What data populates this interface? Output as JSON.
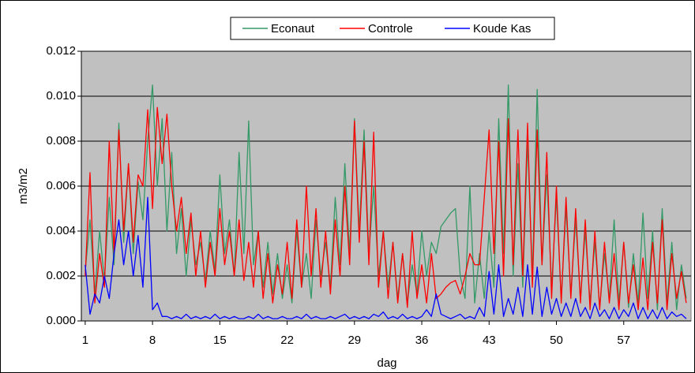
{
  "chart_data": {
    "type": "line",
    "xlabel": "dag",
    "ylabel": "m3/m2",
    "legend": "top",
    "grid": true,
    "xlim": [
      0.6,
      64
    ],
    "xticks": [
      1,
      8,
      15,
      22,
      29,
      36,
      43,
      50,
      57
    ],
    "ylim": [
      0,
      0.012
    ],
    "yticks": [
      {
        "value": 0,
        "label": "0.000"
      },
      {
        "value": 0.002,
        "label": "0.002"
      },
      {
        "value": 0.004,
        "label": "0.004"
      },
      {
        "value": 0.006,
        "label": "0.006"
      },
      {
        "value": 0.008,
        "label": "0.008"
      },
      {
        "value": 0.01,
        "label": "0.010"
      },
      {
        "value": 0.012,
        "label": "0.012"
      }
    ],
    "x": [
      1,
      1.5,
      2,
      2.5,
      3,
      3.5,
      4,
      4.5,
      5,
      5.5,
      6,
      6.5,
      7,
      7.5,
      8,
      8.5,
      9,
      9.5,
      10,
      10.5,
      11,
      11.5,
      12,
      12.5,
      13,
      13.5,
      14,
      14.5,
      15,
      15.5,
      16,
      16.5,
      17,
      17.5,
      18,
      18.5,
      19,
      19.5,
      20,
      20.5,
      21,
      21.5,
      22,
      22.5,
      23,
      23.5,
      24,
      24.5,
      25,
      25.5,
      26,
      26.5,
      27,
      27.5,
      28,
      28.5,
      29,
      29.5,
      30,
      30.5,
      31,
      31.5,
      32,
      32.5,
      33,
      33.5,
      34,
      34.5,
      35,
      35.5,
      36,
      36.5,
      37,
      37.5,
      38,
      38.5,
      39,
      39.5,
      40,
      40.5,
      41,
      41.5,
      42,
      42.5,
      43,
      43.5,
      44,
      44.5,
      45,
      45.5,
      46,
      46.5,
      47,
      47.5,
      48,
      48.5,
      49,
      49.5,
      50,
      50.5,
      51,
      51.5,
      52,
      52.5,
      53,
      53.5,
      54,
      54.5,
      55,
      55.5,
      56,
      56.5,
      57,
      57.5,
      58,
      58.5,
      59,
      59.5,
      60,
      60.5,
      61,
      61.5,
      62,
      62.5,
      63,
      63.5
    ],
    "series": [
      {
        "name": "Econaut",
        "color": "#339966",
        "values": [
          0.0022,
          0.0045,
          0.0012,
          0.004,
          0.0018,
          0.0055,
          0.0025,
          0.0088,
          0.0035,
          0.007,
          0.003,
          0.0062,
          0.0045,
          0.008,
          0.0105,
          0.006,
          0.009,
          0.004,
          0.0075,
          0.003,
          0.005,
          0.002,
          0.0045,
          0.0025,
          0.0035,
          0.0018,
          0.004,
          0.0022,
          0.0065,
          0.003,
          0.0045,
          0.002,
          0.0075,
          0.003,
          0.0089,
          0.0025,
          0.004,
          0.0015,
          0.0035,
          0.0012,
          0.003,
          0.001,
          0.0025,
          0.0008,
          0.004,
          0.0015,
          0.003,
          0.001,
          0.0045,
          0.002,
          0.0035,
          0.0015,
          0.0055,
          0.0025,
          0.007,
          0.003,
          0.009,
          0.004,
          0.0085,
          0.003,
          0.006,
          0.002,
          0.004,
          0.0015,
          0.0035,
          0.001,
          0.003,
          0.0008,
          0.0025,
          0.0012,
          0.004,
          0.002,
          0.0035,
          0.003,
          0.0042,
          0.0045,
          0.0048,
          0.005,
          0.002,
          0.001,
          0.006,
          0.0008,
          0.003,
          0.001,
          0.004,
          0.0015,
          0.009,
          0.003,
          0.0105,
          0.002,
          0.007,
          0.0015,
          0.008,
          0.002,
          0.0103,
          0.0025,
          0.0065,
          0.0015,
          0.0055,
          0.001,
          0.005,
          0.0012,
          0.0045,
          0.001,
          0.004,
          0.0008,
          0.0035,
          0.0006,
          0.003,
          0.001,
          0.0045,
          0.0008,
          0.0035,
          0.0006,
          0.003,
          0.0008,
          0.0048,
          0.001,
          0.004,
          0.0005,
          0.005,
          0.0008,
          0.0035,
          0.0005,
          0.0025,
          0.001
        ]
      },
      {
        "name": "Controle",
        "color": "#ff0000",
        "values": [
          0.002,
          0.0066,
          0.0008,
          0.003,
          0.0015,
          0.008,
          0.003,
          0.0085,
          0.004,
          0.007,
          0.0035,
          0.0065,
          0.006,
          0.0094,
          0.005,
          0.0095,
          0.007,
          0.0092,
          0.006,
          0.004,
          0.0055,
          0.003,
          0.0048,
          0.002,
          0.004,
          0.0015,
          0.0035,
          0.002,
          0.005,
          0.0025,
          0.004,
          0.002,
          0.0045,
          0.0018,
          0.0035,
          0.0015,
          0.004,
          0.001,
          0.003,
          0.0008,
          0.0025,
          0.0012,
          0.0035,
          0.001,
          0.0045,
          0.0015,
          0.006,
          0.002,
          0.005,
          0.0015,
          0.004,
          0.0012,
          0.0045,
          0.002,
          0.006,
          0.0025,
          0.0089,
          0.0035,
          0.008,
          0.0025,
          0.0084,
          0.0015,
          0.004,
          0.001,
          0.0035,
          0.0008,
          0.003,
          0.0006,
          0.004,
          0.001,
          0.0025,
          0.0008,
          0.003,
          0.001,
          0.0012,
          0.0015,
          0.0017,
          0.0018,
          0.0012,
          0.002,
          0.003,
          0.0025,
          0.0025,
          0.0055,
          0.0085,
          0.003,
          0.008,
          0.002,
          0.009,
          0.0025,
          0.0085,
          0.002,
          0.0088,
          0.0015,
          0.0085,
          0.0025,
          0.0075,
          0.001,
          0.006,
          0.0008,
          0.0055,
          0.001,
          0.005,
          0.0008,
          0.0045,
          0.0005,
          0.004,
          0.0005,
          0.0035,
          0.0008,
          0.003,
          0.0005,
          0.0035,
          0.0008,
          0.0025,
          0.0005,
          0.0028,
          0.0005,
          0.0035,
          0.0008,
          0.0045,
          0.0005,
          0.003,
          0.001,
          0.0022,
          0.0008
        ]
      },
      {
        "name": "Koude Kas",
        "color": "#0000ff",
        "values": [
          0.0025,
          0.0003,
          0.0012,
          0.0008,
          0.002,
          0.001,
          0.003,
          0.0045,
          0.0025,
          0.004,
          0.002,
          0.0038,
          0.0015,
          0.0055,
          0.0005,
          0.0008,
          0.0002,
          0.0002,
          0.0001,
          0.0002,
          0.0001,
          0.0003,
          0.0001,
          0.0002,
          0.0001,
          0.0002,
          0.0001,
          0.0003,
          0.0001,
          0.0002,
          0.0001,
          0.0002,
          0.0001,
          0.0001,
          0.0002,
          0.0001,
          0.0003,
          0.0001,
          0.0002,
          0.0001,
          0.0001,
          0.0002,
          0.0001,
          0.0001,
          0.0002,
          0.0001,
          0.0003,
          0.0001,
          0.0002,
          0.0001,
          0.0001,
          0.0002,
          0.0001,
          0.0002,
          0.0003,
          0.0001,
          0.0002,
          0.0001,
          0.0002,
          0.0001,
          0.0003,
          0.0002,
          0.0004,
          0.0001,
          0.0002,
          0.0001,
          0.0003,
          0.0001,
          0.0002,
          0.0001,
          0.0002,
          0.0005,
          0.0002,
          0.0012,
          0.0003,
          0.0002,
          0.0001,
          0.0002,
          0.0003,
          0.0001,
          0.0002,
          0.0001,
          0.0006,
          0.0002,
          0.0022,
          0.0003,
          0.0025,
          0.0002,
          0.001,
          0.0003,
          0.0015,
          0.0002,
          0.0025,
          0.0003,
          0.0024,
          0.0002,
          0.0015,
          0.0003,
          0.001,
          0.0002,
          0.0008,
          0.0002,
          0.001,
          0.0002,
          0.0006,
          0.0001,
          0.0008,
          0.0002,
          0.0005,
          0.0001,
          0.0006,
          0.0001,
          0.0005,
          0.0002,
          0.0008,
          0.0001,
          0.0006,
          0.0001,
          0.0005,
          0.0001,
          0.0006,
          0.0001,
          0.0004,
          0.0002,
          0.0003,
          0.0001
        ]
      }
    ]
  }
}
